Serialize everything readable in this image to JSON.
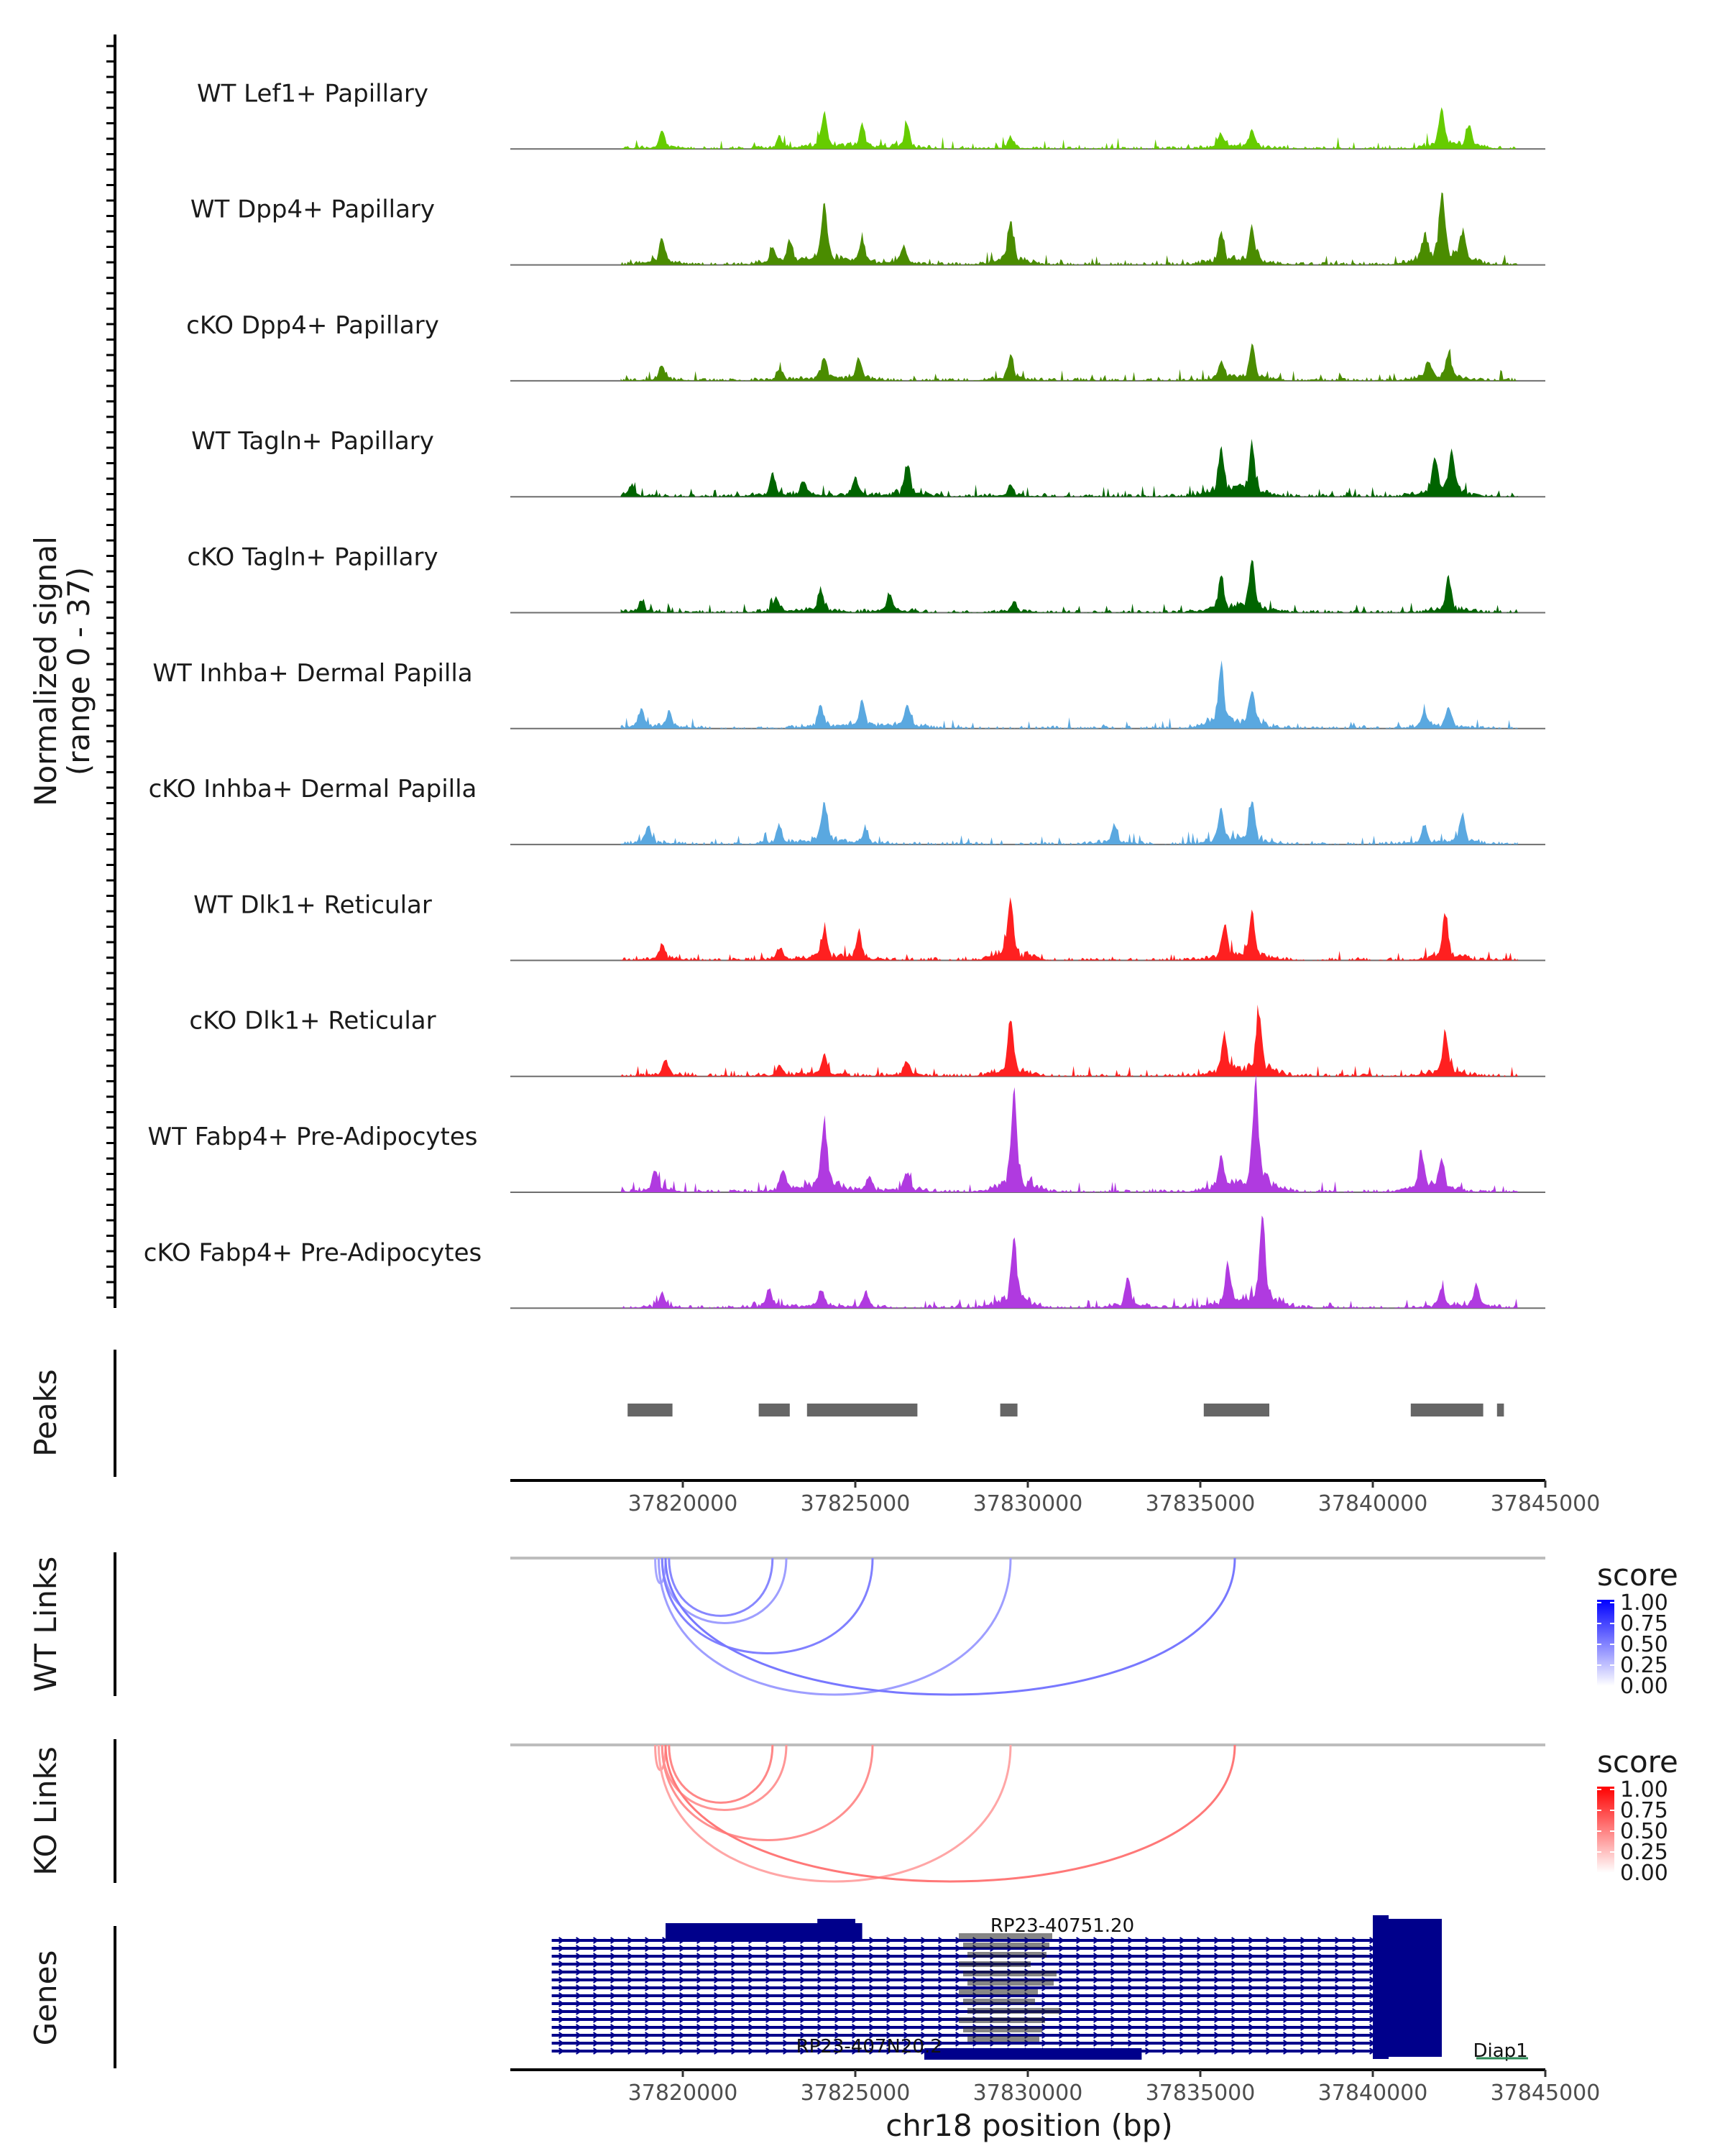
{
  "chart_data": {
    "type": "area",
    "region": {
      "chromosome": "chr18",
      "start": 37815000,
      "end": 37845000
    },
    "xlabel": "chr18 position (bp)",
    "ticks": [
      37820000,
      37825000,
      37830000,
      37835000,
      37840000,
      37845000
    ],
    "tick_labels": [
      "37820000",
      "37825000",
      "37830000",
      "37835000",
      "37840000",
      "37845000"
    ],
    "coverage": {
      "ylabel_line1": "Normalized signal",
      "ylabel_line2": "(range 0 - 37)",
      "ylim": [
        0,
        37
      ],
      "tracks": [
        {
          "label": "WT Lef1+ Papillary",
          "color": "#66CC00",
          "peaks": [
            [
              37819400,
              5
            ],
            [
              37822800,
              3
            ],
            [
              37824100,
              9
            ],
            [
              37825200,
              6
            ],
            [
              37826500,
              6
            ],
            [
              37829500,
              3
            ],
            [
              37835600,
              4
            ],
            [
              37836500,
              5
            ],
            [
              37842000,
              10
            ],
            [
              37842800,
              6
            ]
          ]
        },
        {
          "label": "WT Dpp4+ Papillary",
          "color": "#4A8C00",
          "peaks": [
            [
              37819400,
              7
            ],
            [
              37822600,
              4
            ],
            [
              37823100,
              6
            ],
            [
              37824100,
              16
            ],
            [
              37825200,
              6
            ],
            [
              37826400,
              5
            ],
            [
              37829500,
              12
            ],
            [
              37835600,
              8
            ],
            [
              37836500,
              10
            ],
            [
              37841500,
              6
            ],
            [
              37842000,
              18
            ],
            [
              37842600,
              8
            ]
          ]
        },
        {
          "label": "cKO Dpp4+ Papillary",
          "color": "#4A8C00",
          "peaks": [
            [
              37819400,
              4
            ],
            [
              37822800,
              3
            ],
            [
              37824100,
              6
            ],
            [
              37825100,
              6
            ],
            [
              37829500,
              7
            ],
            [
              37835600,
              5
            ],
            [
              37836500,
              9
            ],
            [
              37841600,
              5
            ],
            [
              37842200,
              7
            ]
          ]
        },
        {
          "label": "WT Tagln+ Papillary",
          "color": "#006400",
          "peaks": [
            [
              37818500,
              3
            ],
            [
              37822600,
              6
            ],
            [
              37823500,
              4
            ],
            [
              37825000,
              5
            ],
            [
              37826500,
              8
            ],
            [
              37829500,
              3
            ],
            [
              37835600,
              13
            ],
            [
              37836500,
              13
            ],
            [
              37841800,
              9
            ],
            [
              37842300,
              11
            ]
          ]
        },
        {
          "label": "cKO Tagln+ Papillary",
          "color": "#006400",
          "peaks": [
            [
              37818800,
              3
            ],
            [
              37822700,
              4
            ],
            [
              37824000,
              6
            ],
            [
              37826000,
              5
            ],
            [
              37829600,
              3
            ],
            [
              37835600,
              9
            ],
            [
              37836500,
              13
            ],
            [
              37842200,
              9
            ]
          ]
        },
        {
          "label": "WT Inhba+ Dermal Papilla",
          "color": "#5AA8E0",
          "peaks": [
            [
              37818800,
              5
            ],
            [
              37819600,
              4
            ],
            [
              37824000,
              6
            ],
            [
              37825200,
              7
            ],
            [
              37826500,
              6
            ],
            [
              37835600,
              17
            ],
            [
              37836500,
              10
            ],
            [
              37841500,
              4
            ],
            [
              37842200,
              5
            ]
          ]
        },
        {
          "label": "cKO Inhba+ Dermal Papilla",
          "color": "#5AA8E0",
          "peaks": [
            [
              37819000,
              5
            ],
            [
              37822800,
              5
            ],
            [
              37824100,
              11
            ],
            [
              37825300,
              4
            ],
            [
              37832500,
              5
            ],
            [
              37835600,
              9
            ],
            [
              37836500,
              11
            ],
            [
              37841500,
              5
            ],
            [
              37842600,
              8
            ]
          ]
        },
        {
          "label": "WT Dlk1+ Reticular",
          "color": "#FF2020",
          "peaks": [
            [
              37819400,
              4
            ],
            [
              37822800,
              3
            ],
            [
              37824100,
              8
            ],
            [
              37825100,
              7
            ],
            [
              37829500,
              17
            ],
            [
              37835700,
              9
            ],
            [
              37836500,
              12
            ],
            [
              37842100,
              12
            ]
          ]
        },
        {
          "label": "cKO Dlk1+ Reticular",
          "color": "#FF2020",
          "peaks": [
            [
              37819500,
              4
            ],
            [
              37822800,
              3
            ],
            [
              37824100,
              6
            ],
            [
              37826500,
              4
            ],
            [
              37829500,
              15
            ],
            [
              37835700,
              11
            ],
            [
              37836700,
              17
            ],
            [
              37842100,
              12
            ]
          ]
        },
        {
          "label": "WT Fabp4+ Pre-Adipocytes",
          "color": "#B03AE0",
          "peaks": [
            [
              37819200,
              6
            ],
            [
              37822900,
              6
            ],
            [
              37824100,
              19
            ],
            [
              37825400,
              4
            ],
            [
              37826500,
              5
            ],
            [
              37829600,
              27
            ],
            [
              37835600,
              9
            ],
            [
              37836600,
              30
            ],
            [
              37841400,
              10
            ],
            [
              37842000,
              8
            ]
          ]
        },
        {
          "label": "cKO Fabp4+ Pre-Adipocytes",
          "color": "#B03AE0",
          "peaks": [
            [
              37819400,
              4
            ],
            [
              37822500,
              5
            ],
            [
              37824000,
              5
            ],
            [
              37825300,
              4
            ],
            [
              37829600,
              19
            ],
            [
              37832900,
              8
            ],
            [
              37835800,
              11
            ],
            [
              37836800,
              24
            ],
            [
              37842000,
              5
            ],
            [
              37843000,
              6
            ]
          ]
        }
      ]
    },
    "peaks": {
      "label": "Peaks",
      "color": "#666666",
      "regions": [
        [
          37818400,
          37819700
        ],
        [
          37822200,
          37823100
        ],
        [
          37823600,
          37826800
        ],
        [
          37829200,
          37829700
        ],
        [
          37835100,
          37837000
        ],
        [
          37841100,
          37843200
        ],
        [
          37843600,
          37843800
        ]
      ]
    },
    "wt_links": {
      "label": "WT Links",
      "legend_title": "score",
      "legend_ticks": [
        "1.00",
        "0.75",
        "0.50",
        "0.25",
        "0.00"
      ],
      "color_low": "#FFFFFF",
      "color_high": "#0000FF",
      "links": [
        {
          "start": 37819200,
          "end": 37819500,
          "score": 0.25
        },
        {
          "start": 37819400,
          "end": 37823000,
          "score": 0.3
        },
        {
          "start": 37819400,
          "end": 37825500,
          "score": 0.5
        },
        {
          "start": 37819300,
          "end": 37829500,
          "score": 0.3
        },
        {
          "start": 37819500,
          "end": 37836000,
          "score": 0.55
        },
        {
          "start": 37819600,
          "end": 37822600,
          "score": 0.45
        }
      ]
    },
    "ko_links": {
      "label": "KO Links",
      "legend_title": "score",
      "legend_ticks": [
        "1.00",
        "0.75",
        "0.50",
        "0.25",
        "0.00"
      ],
      "color_low": "#FFFFFF",
      "color_high": "#FF0000",
      "links": [
        {
          "start": 37819200,
          "end": 37819500,
          "score": 0.3
        },
        {
          "start": 37819400,
          "end": 37823000,
          "score": 0.35
        },
        {
          "start": 37819400,
          "end": 37825500,
          "score": 0.4
        },
        {
          "start": 37819300,
          "end": 37829500,
          "score": 0.25
        },
        {
          "start": 37819500,
          "end": 37836000,
          "score": 0.55
        },
        {
          "start": 37819600,
          "end": 37822600,
          "score": 0.45
        }
      ]
    },
    "genes": {
      "label": "Genes",
      "color": "#00008B",
      "block_start": 37816200,
      "block_end": 37842000,
      "labels": [
        {
          "text": "RP23-40751.20",
          "pos": 37831000
        },
        {
          "text": "RP23-407N20.2",
          "pos": 37825400
        },
        {
          "text": "Diap1",
          "pos": 37843700
        }
      ]
    }
  }
}
